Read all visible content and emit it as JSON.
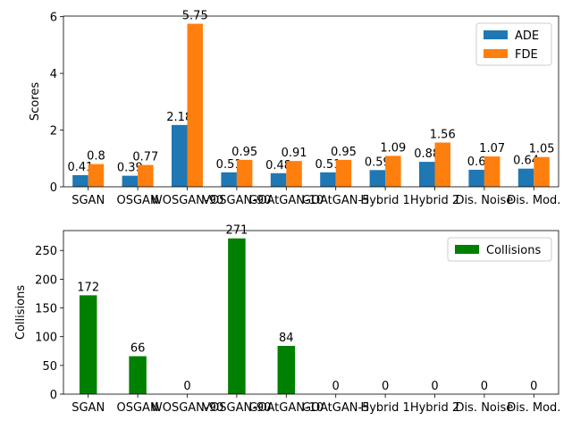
{
  "colors": {
    "ade": "#1f77b4",
    "fde": "#ff7f0e",
    "collisions": "#008000"
  },
  "chart_data": [
    {
      "type": "bar",
      "categories": [
        "SGAN",
        "OSGAN",
        "WOSGAN-90",
        "VOSGAN-90",
        "GOAtGAN-10",
        "GOAtGAN-5",
        "Hybrid 1",
        "Hybrid 2",
        "Dis. Noise",
        "Dis. Mod."
      ],
      "series": [
        {
          "name": "ADE",
          "values": [
            0.41,
            0.39,
            2.18,
            0.51,
            0.48,
            0.51,
            0.59,
            0.88,
            0.6,
            0.64
          ],
          "labels": [
            "0.41",
            "0.39",
            "2.18",
            "0.51",
            "0.48",
            "0.51",
            "0.59",
            "0.88",
            "0.6",
            "0.64"
          ]
        },
        {
          "name": "FDE",
          "values": [
            0.8,
            0.77,
            5.75,
            0.95,
            0.91,
            0.95,
            1.09,
            1.56,
            1.07,
            1.05
          ],
          "labels": [
            "0.8",
            "0.77",
            "5.75",
            "0.95",
            "0.91",
            "0.95",
            "1.09",
            "1.56",
            "1.07",
            "1.05"
          ]
        }
      ],
      "ylabel": "Scores",
      "ylim": [
        0,
        6.02
      ],
      "yticks": [
        "0",
        "2",
        "4",
        "6"
      ],
      "legend": "top-right",
      "grid": false
    },
    {
      "type": "bar",
      "categories": [
        "SGAN",
        "OSGAN",
        "WOSGAN-90",
        "VOSGAN-90",
        "GOAtGAN-10",
        "GOAtGAN-5",
        "Hybrid 1",
        "Hybrid 2",
        "Dis. Noise",
        "Dis. Mod."
      ],
      "series": [
        {
          "name": "Collisions",
          "values": [
            172,
            66,
            0,
            271,
            84,
            0,
            0,
            0,
            0,
            0
          ],
          "labels": [
            "172",
            "66",
            "0",
            "271",
            "84",
            "0",
            "0",
            "0",
            "0",
            "0"
          ]
        }
      ],
      "ylabel": "Collisions",
      "ylim": [
        0,
        284.55
      ],
      "yticks": [
        "0",
        "50",
        "100",
        "150",
        "200",
        "250"
      ],
      "legend": "top-right",
      "grid": false
    }
  ]
}
